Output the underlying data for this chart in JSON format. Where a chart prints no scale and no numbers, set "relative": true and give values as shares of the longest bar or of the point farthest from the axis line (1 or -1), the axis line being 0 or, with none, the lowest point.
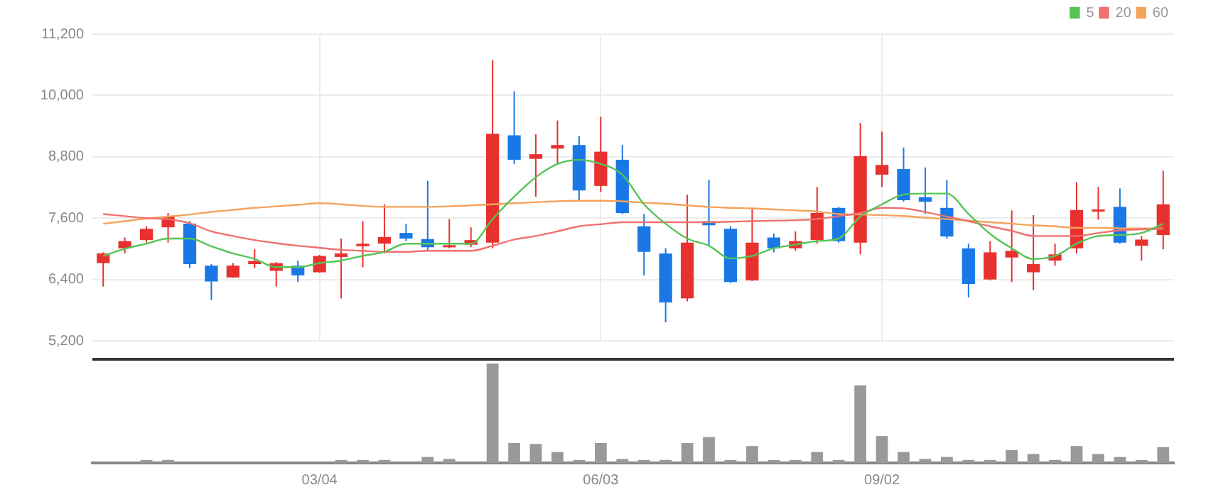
{
  "chart_data": [
    {
      "type": "candlestick",
      "categories": [
        null,
        null,
        null,
        null,
        null,
        null,
        null,
        null,
        null,
        null,
        null,
        null,
        null,
        null,
        null,
        null,
        null,
        null,
        null,
        null,
        null,
        null,
        null,
        null,
        null,
        null,
        null,
        null,
        null,
        null,
        null,
        null,
        null,
        null,
        null,
        null,
        null,
        null,
        null,
        null,
        null,
        null,
        null,
        null,
        null,
        null,
        null,
        null,
        null,
        null
      ],
      "ohlc": [
        [
          6720,
          6930,
          6260,
          6910
        ],
        [
          7010,
          7220,
          6910,
          7150
        ],
        [
          7170,
          7440,
          7120,
          7390
        ],
        [
          7420,
          7700,
          7120,
          7630
        ],
        [
          7490,
          7540,
          6620,
          6700
        ],
        [
          6670,
          6700,
          6000,
          6360
        ],
        [
          6440,
          6720,
          6430,
          6670
        ],
        [
          6700,
          6990,
          6620,
          6760
        ],
        [
          6570,
          6740,
          6260,
          6720
        ],
        [
          6670,
          6770,
          6350,
          6480
        ],
        [
          6540,
          6880,
          6530,
          6860
        ],
        [
          6840,
          7200,
          6030,
          6910
        ],
        [
          7050,
          7540,
          6640,
          7100
        ],
        [
          7100,
          7870,
          6910,
          7230
        ],
        [
          7310,
          7490,
          7150,
          7200
        ],
        [
          7190,
          8330,
          6960,
          7030
        ],
        [
          7030,
          7580,
          7010,
          7070
        ],
        [
          7080,
          7420,
          7030,
          7170
        ],
        [
          7120,
          10690,
          7010,
          9250
        ],
        [
          9220,
          10080,
          8660,
          8740
        ],
        [
          8760,
          9240,
          8020,
          8850
        ],
        [
          8960,
          9510,
          8660,
          9030
        ],
        [
          9030,
          9200,
          7940,
          8140
        ],
        [
          8230,
          9580,
          8110,
          8900
        ],
        [
          8740,
          9030,
          7680,
          7700
        ],
        [
          7440,
          7680,
          6480,
          6940
        ],
        [
          6910,
          7010,
          5560,
          5950
        ],
        [
          6030,
          8060,
          5970,
          7120
        ],
        [
          7540,
          8350,
          7050,
          7460
        ],
        [
          7390,
          7440,
          6330,
          6350
        ],
        [
          6380,
          7780,
          6370,
          7120
        ],
        [
          7220,
          7300,
          6930,
          7010
        ],
        [
          7010,
          7340,
          6960,
          7150
        ],
        [
          7170,
          8210,
          7100,
          7700
        ],
        [
          7800,
          7820,
          7120,
          7150
        ],
        [
          7120,
          9460,
          6890,
          8810
        ],
        [
          8450,
          9290,
          8210,
          8640
        ],
        [
          8560,
          8980,
          7920,
          7950
        ],
        [
          8010,
          8590,
          7680,
          7920
        ],
        [
          7800,
          8350,
          7200,
          7240
        ],
        [
          7010,
          7100,
          6050,
          6310
        ],
        [
          6400,
          7150,
          6380,
          6930
        ],
        [
          6830,
          7750,
          6350,
          6960
        ],
        [
          6540,
          7660,
          6190,
          6700
        ],
        [
          6770,
          7100,
          6670,
          6890
        ],
        [
          7010,
          8300,
          6910,
          7760
        ],
        [
          7730,
          8210,
          7570,
          7770
        ],
        [
          7820,
          8180,
          7100,
          7120
        ],
        [
          7060,
          7250,
          6770,
          7180
        ],
        [
          7270,
          8530,
          6990,
          7870
        ]
      ],
      "colors": [
        "#e8312f",
        "#e8312f",
        "#e8312f",
        "#e8312f",
        "#1a78e6",
        "#1a78e6",
        "#e8312f",
        "#e8312f",
        "#e8312f",
        "#1a78e6",
        "#e8312f",
        "#e8312f",
        "#e8312f",
        "#e8312f",
        "#1a78e6",
        "#1a78e6",
        "#e8312f",
        "#e8312f",
        "#e8312f",
        "#1a78e6",
        "#e8312f",
        "#e8312f",
        "#1a78e6",
        "#e8312f",
        "#1a78e6",
        "#1a78e6",
        "#1a78e6",
        "#e8312f",
        "#1a78e6",
        "#1a78e6",
        "#e8312f",
        "#1a78e6",
        "#e8312f",
        "#e8312f",
        "#1a78e6",
        "#e8312f",
        "#e8312f",
        "#1a78e6",
        "#1a78e6",
        "#1a78e6",
        "#1a78e6",
        "#e8312f",
        "#e8312f",
        "#e8312f",
        "#e8312f",
        "#e8312f",
        "#e8312f",
        "#1a78e6",
        "#e8312f",
        "#e8312f"
      ],
      "series": [
        {
          "type": "line",
          "name": "5",
          "color": "#55c455",
          "values": [
            6860,
            7000,
            7100,
            7200,
            7200,
            7050,
            6910,
            6800,
            6640,
            6640,
            6720,
            6770,
            6860,
            6940,
            7100,
            7100,
            7100,
            7100,
            7580,
            8020,
            8400,
            8660,
            8740,
            8660,
            8450,
            7870,
            7490,
            7200,
            7060,
            6810,
            6860,
            7010,
            7080,
            7150,
            7200,
            7630,
            7870,
            8060,
            8080,
            8080,
            7680,
            7290,
            7010,
            6800,
            6860,
            7100,
            7250,
            7270,
            7310,
            7490
          ]
        },
        {
          "type": "line",
          "name": "20",
          "color": "#f07070",
          "values": [
            7680,
            7640,
            7600,
            7580,
            7500,
            7340,
            7250,
            7170,
            7110,
            7060,
            7020,
            6980,
            6960,
            6940,
            6940,
            6960,
            6960,
            6960,
            7060,
            7180,
            7250,
            7340,
            7440,
            7480,
            7520,
            7520,
            7520,
            7520,
            7520,
            7530,
            7540,
            7550,
            7560,
            7580,
            7640,
            7700,
            7800,
            7790,
            7720,
            7630,
            7540,
            7440,
            7350,
            7250,
            7250,
            7250,
            7310,
            7360,
            7380,
            7390
          ]
        },
        {
          "type": "line",
          "name": "60",
          "color": "#f5a25a",
          "values": [
            7490,
            7540,
            7590,
            7630,
            7670,
            7720,
            7760,
            7800,
            7830,
            7860,
            7890,
            7870,
            7840,
            7820,
            7820,
            7820,
            7830,
            7850,
            7870,
            7890,
            7910,
            7930,
            7940,
            7940,
            7930,
            7900,
            7880,
            7850,
            7820,
            7800,
            7790,
            7770,
            7750,
            7730,
            7680,
            7670,
            7660,
            7640,
            7610,
            7580,
            7550,
            7520,
            7490,
            7460,
            7440,
            7410,
            7410,
            7400,
            7400,
            7400
          ]
        }
      ],
      "ylim": [
        5200,
        11200
      ],
      "yticks": [
        {
          "value": 5200,
          "label": "5,200"
        },
        {
          "value": 6400,
          "label": "6,400"
        },
        {
          "value": 7600,
          "label": "7,600"
        },
        {
          "value": 8800,
          "label": "8,800"
        },
        {
          "value": 10000,
          "label": "10,000"
        },
        {
          "value": 11200,
          "label": "11,200"
        }
      ],
      "grid": true,
      "legend": "top right",
      "marker": "none",
      "tick_labels": "y"
    },
    {
      "type": "bar",
      "relative": true,
      "color": "#999999",
      "tick_labels": "x",
      "categories": [
        null,
        null,
        null,
        null,
        null,
        null,
        null,
        null,
        null,
        null,
        "03/04",
        null,
        null,
        null,
        null,
        null,
        null,
        null,
        null,
        null,
        null,
        null,
        null,
        "06/03",
        null,
        null,
        null,
        null,
        null,
        null,
        null,
        null,
        null,
        null,
        null,
        null,
        "09/02",
        null,
        null,
        null,
        null,
        null,
        null,
        null,
        null,
        null,
        null,
        null,
        null,
        null
      ],
      "values": [
        null,
        null,
        0.03,
        0.03,
        null,
        null,
        null,
        null,
        null,
        null,
        null,
        0.03,
        0.03,
        0.03,
        null,
        0.06,
        0.04,
        null,
        1,
        0.2,
        0.19,
        0.11,
        0.03,
        0.2,
        0.04,
        0.03,
        0.03,
        0.2,
        0.26,
        0.03,
        0.17,
        0.03,
        0.03,
        0.11,
        0.03,
        0.78,
        0.27,
        0.11,
        0.04,
        0.06,
        0.03,
        0.03,
        0.13,
        0.09,
        0.03,
        0.17,
        0.09,
        0.06,
        0.03,
        0.16
      ]
    }
  ]
}
